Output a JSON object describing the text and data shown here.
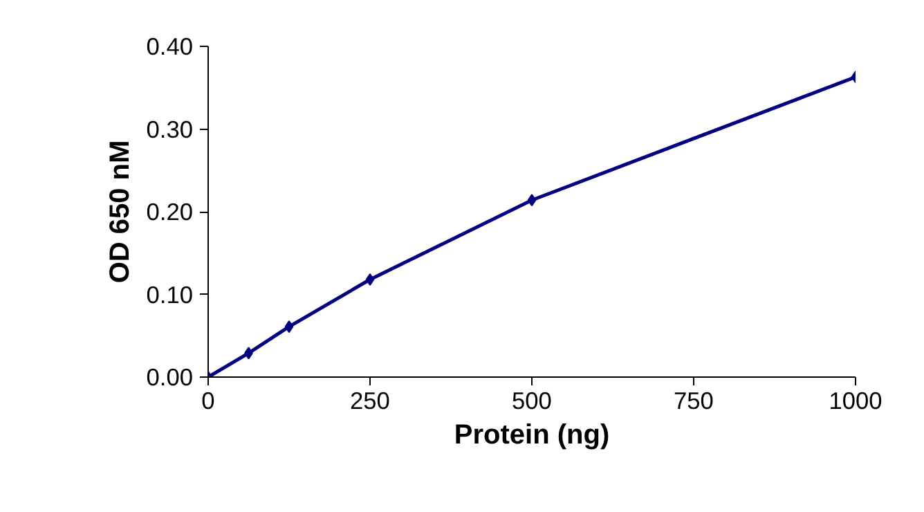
{
  "chart_data": {
    "type": "line",
    "xlabel": "Protein (ng)",
    "ylabel": "OD 650 nM",
    "x": [
      0,
      62.5,
      125,
      250,
      500,
      1000
    ],
    "series": [
      {
        "color": "#000080",
        "values": [
          0,
          0.029,
          0.061,
          0.118,
          0.214,
          0.363
        ]
      }
    ],
    "xlim": [
      0,
      1000
    ],
    "xticks": [
      0,
      250,
      500,
      750,
      1000
    ],
    "ylim": [
      0,
      0.4
    ],
    "yticks": [
      {
        "value": 0,
        "label": "0.00"
      },
      {
        "value": 0.1,
        "label": "0.10"
      },
      {
        "value": 0.2,
        "label": "0.20"
      },
      {
        "value": 0.3,
        "label": "0.30"
      },
      {
        "value": 0.4,
        "label": "0.40"
      }
    ],
    "grid": false,
    "marker": "diamond",
    "line_style": "solid"
  }
}
